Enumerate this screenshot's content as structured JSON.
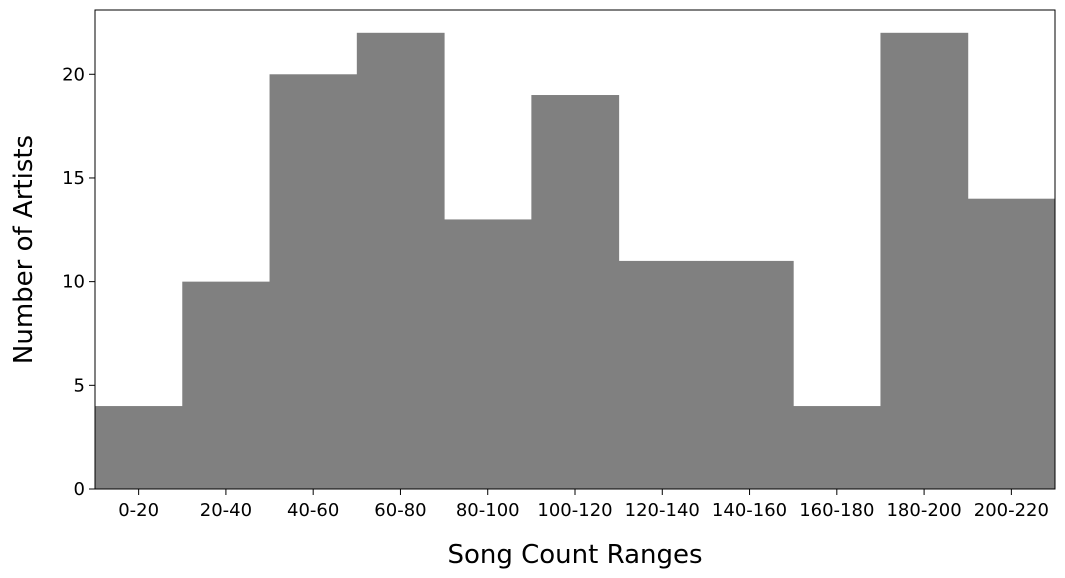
{
  "chart_data": {
    "type": "bar",
    "title": "",
    "xlabel": "Song Count Ranges",
    "ylabel": "Number of Artists",
    "categories": [
      "0-20",
      "20-40",
      "40-60",
      "60-80",
      "80-100",
      "100-120",
      "120-140",
      "140-160",
      "160-180",
      "180-200",
      "200-220"
    ],
    "values": [
      4,
      10,
      20,
      22,
      13,
      19,
      11,
      11,
      4,
      22,
      14
    ],
    "ylim": [
      0,
      23.1
    ],
    "yticks": [
      0,
      5,
      10,
      15,
      20
    ],
    "bar_color": "#808080",
    "grid": false,
    "legend": "none"
  }
}
